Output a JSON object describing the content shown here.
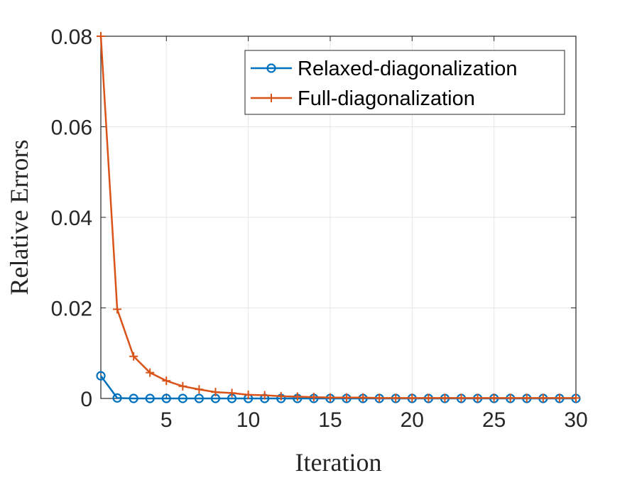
{
  "chart_data": {
    "type": "line",
    "xlabel": "Iteration",
    "ylabel": "Relative Errors",
    "xlim": [
      1,
      30
    ],
    "ylim": [
      0,
      0.08
    ],
    "xticks": [
      5,
      10,
      15,
      20,
      25,
      30
    ],
    "yticks": [
      0,
      0.02,
      0.04,
      0.06,
      0.08
    ],
    "xtick_labels": [
      "5",
      "10",
      "15",
      "20",
      "25",
      "30"
    ],
    "ytick_labels": [
      "0",
      "0.02",
      "0.04",
      "0.06",
      "0.08"
    ],
    "grid": true,
    "legend_position": "top-right",
    "x": [
      1,
      2,
      3,
      4,
      5,
      6,
      7,
      8,
      9,
      10,
      11,
      12,
      13,
      14,
      15,
      16,
      17,
      18,
      19,
      20,
      21,
      22,
      23,
      24,
      25,
      26,
      27,
      28,
      29,
      30
    ],
    "series": [
      {
        "name": "Relaxed-diagonalization",
        "color": "#0072BD",
        "marker": "circle",
        "values": [
          0.005,
          0.0001,
          0,
          0,
          0,
          0,
          0,
          0,
          0,
          0,
          0,
          0,
          0,
          0,
          0,
          0,
          0,
          0,
          0,
          0,
          0,
          0,
          0,
          0,
          0,
          0,
          0,
          0,
          0,
          0
        ]
      },
      {
        "name": "Full-diagonalization",
        "color": "#D95319",
        "marker": "plus",
        "values": [
          0.08,
          0.0197,
          0.0093,
          0.0057,
          0.0039,
          0.0027,
          0.002,
          0.0014,
          0.0012,
          0.0008,
          0.0007,
          0.0005,
          0.0004,
          0.0003,
          0.0002,
          0.0002,
          0.0002,
          0.0001,
          0.0001,
          0.0001,
          0.0001,
          0.0001,
          0.0001,
          0.0001,
          0.0001,
          0.0001,
          0.0001,
          0.0001,
          0.0001,
          0.0001
        ]
      }
    ]
  }
}
